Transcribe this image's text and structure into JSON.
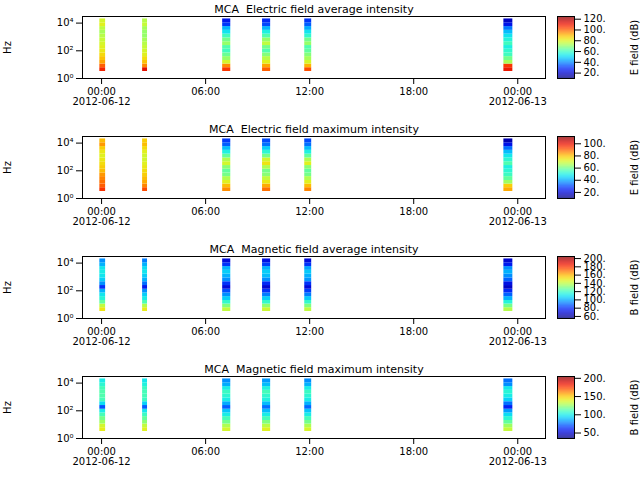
{
  "chart_data": [
    {
      "type": "heatmap",
      "title": "MCA  Electric field average intensity",
      "ylabel": "Hz",
      "log": "y",
      "xlim": [
        "2012-06-11 22:54",
        "2012-06-13 01:36"
      ],
      "xticks": [
        {
          "value": "2012-06-12 00:00",
          "label": "00:00\n2012-06-12"
        },
        {
          "value": "2012-06-12 06:00",
          "label": "06:00"
        },
        {
          "value": "2012-06-12 12:00",
          "label": "12:00"
        },
        {
          "value": "2012-06-12 18:00",
          "label": "18:00"
        },
        {
          "value": "2012-06-13 00:00",
          "label": "00:00\n2012-06-13"
        }
      ],
      "ylim": [
        1,
        30000
      ],
      "yticks": [
        {
          "value": 1,
          "label": "10⁰"
        },
        {
          "value": 100,
          "label": "10²"
        },
        {
          "value": 10000,
          "label": "10⁴"
        }
      ],
      "time_bins": [
        {
          "start": "2012-06-11 23:54",
          "end": "2012-06-12 00:14"
        },
        {
          "start": "2012-06-12 02:22",
          "end": "2012-06-12 02:39"
        },
        {
          "start": "2012-06-12 06:59",
          "end": "2012-06-12 07:27"
        },
        {
          "start": "2012-06-12 09:17",
          "end": "2012-06-12 09:45"
        },
        {
          "start": "2012-06-12 11:43",
          "end": "2012-06-12 12:07"
        },
        {
          "start": "2012-06-12 23:12",
          "end": "2012-06-12 23:43"
        }
      ],
      "frequency_bins": [
        3.2,
        6,
        11,
        20,
        38,
        70,
        130,
        240,
        450,
        850,
        1600,
        3000,
        5600,
        10500,
        20000
      ],
      "cells": [
        [
          108,
          100,
          92,
          88,
          85,
          82,
          80,
          78,
          76,
          74,
          72,
          75,
          80,
          78
        ],
        [
          112,
          95,
          88,
          84,
          80,
          78,
          76,
          74,
          72,
          70,
          70,
          72,
          76,
          74
        ],
        [
          105,
          95,
          78,
          70,
          65,
          60,
          62,
          70,
          66,
          60,
          52,
          45,
          30,
          25
        ],
        [
          100,
          92,
          80,
          74,
          68,
          62,
          66,
          75,
          70,
          62,
          55,
          45,
          32,
          28
        ],
        [
          102,
          90,
          78,
          72,
          68,
          64,
          62,
          70,
          66,
          58,
          52,
          44,
          35,
          30
        ],
        [
          110,
          105,
          72,
          66,
          60,
          58,
          55,
          60,
          56,
          52,
          46,
          38,
          24,
          18
        ]
      ],
      "colorbar": {
        "label": "E field (dB)",
        "range": [
          10,
          125
        ],
        "ticks": [
          {
            "value": 20,
            "label": "20."
          },
          {
            "value": 40,
            "label": "40."
          },
          {
            "value": 60,
            "label": "60."
          },
          {
            "value": 80,
            "label": "80."
          },
          {
            "value": 100,
            "label": "100."
          },
          {
            "value": 120,
            "label": "120."
          }
        ]
      }
    },
    {
      "type": "heatmap",
      "title": "MCA  Electric field maximum intensity",
      "ylabel": "Hz",
      "log": "y",
      "xlim": [
        "2012-06-11 22:54",
        "2012-06-13 01:36"
      ],
      "xticks": [
        {
          "value": "2012-06-12 00:00",
          "label": "00:00\n2012-06-12"
        },
        {
          "value": "2012-06-12 06:00",
          "label": "06:00"
        },
        {
          "value": "2012-06-12 12:00",
          "label": "12:00"
        },
        {
          "value": "2012-06-12 18:00",
          "label": "18:00"
        },
        {
          "value": "2012-06-13 00:00",
          "label": "00:00\n2012-06-13"
        }
      ],
      "ylim": [
        1,
        30000
      ],
      "yticks": [
        {
          "value": 1,
          "label": "10⁰"
        },
        {
          "value": 100,
          "label": "10²"
        },
        {
          "value": 10000,
          "label": "10⁴"
        }
      ],
      "time_bins": [
        {
          "start": "2012-06-11 23:54",
          "end": "2012-06-12 00:14"
        },
        {
          "start": "2012-06-12 02:22",
          "end": "2012-06-12 02:39"
        },
        {
          "start": "2012-06-12 06:59",
          "end": "2012-06-12 07:27"
        },
        {
          "start": "2012-06-12 09:17",
          "end": "2012-06-12 09:45"
        },
        {
          "start": "2012-06-12 11:43",
          "end": "2012-06-12 12:07"
        },
        {
          "start": "2012-06-12 23:12",
          "end": "2012-06-12 23:43"
        }
      ],
      "frequency_bins": [
        3.2,
        6,
        11,
        20,
        38,
        70,
        130,
        240,
        450,
        850,
        1600,
        3000,
        5600,
        10500,
        20000
      ],
      "cells": [
        [
          95,
          90,
          88,
          86,
          84,
          80,
          78,
          76,
          74,
          72,
          74,
          78,
          84,
          80
        ],
        [
          92,
          86,
          82,
          80,
          78,
          76,
          74,
          72,
          70,
          70,
          72,
          76,
          80,
          78
        ],
        [
          85,
          80,
          72,
          66,
          60,
          58,
          62,
          70,
          66,
          58,
          50,
          42,
          32,
          28
        ],
        [
          88,
          82,
          74,
          68,
          62,
          60,
          66,
          75,
          70,
          60,
          52,
          44,
          34,
          30
        ],
        [
          86,
          80,
          72,
          66,
          60,
          58,
          62,
          72,
          66,
          58,
          50,
          42,
          34,
          30
        ],
        [
          82,
          78,
          64,
          58,
          54,
          52,
          50,
          56,
          52,
          48,
          42,
          34,
          22,
          15
        ]
      ],
      "colorbar": {
        "label": "E field (dB)",
        "range": [
          10,
          112
        ],
        "ticks": [
          {
            "value": 20,
            "label": "20."
          },
          {
            "value": 40,
            "label": "40."
          },
          {
            "value": 60,
            "label": "60."
          },
          {
            "value": 80,
            "label": "80."
          },
          {
            "value": 100,
            "label": "100."
          }
        ]
      }
    },
    {
      "type": "heatmap",
      "title": "MCA  Magnetic field average intensity",
      "ylabel": "Hz",
      "log": "y",
      "xlim": [
        "2012-06-11 22:54",
        "2012-06-13 01:36"
      ],
      "xticks": [
        {
          "value": "2012-06-12 00:00",
          "label": "00:00\n2012-06-12"
        },
        {
          "value": "2012-06-12 06:00",
          "label": "06:00"
        },
        {
          "value": "2012-06-12 12:00",
          "label": "12:00"
        },
        {
          "value": "2012-06-12 18:00",
          "label": "18:00"
        },
        {
          "value": "2012-06-13 00:00",
          "label": "00:00\n2012-06-13"
        }
      ],
      "ylim": [
        1,
        30000
      ],
      "yticks": [
        {
          "value": 1,
          "label": "10⁰"
        },
        {
          "value": 100,
          "label": "10²"
        },
        {
          "value": 10000,
          "label": "10⁴"
        }
      ],
      "time_bins": [
        {
          "start": "2012-06-11 23:54",
          "end": "2012-06-12 00:14"
        },
        {
          "start": "2012-06-12 02:22",
          "end": "2012-06-12 02:39"
        },
        {
          "start": "2012-06-12 06:59",
          "end": "2012-06-12 07:27"
        },
        {
          "start": "2012-06-12 09:17",
          "end": "2012-06-12 09:45"
        },
        {
          "start": "2012-06-12 11:43",
          "end": "2012-06-12 12:07"
        },
        {
          "start": "2012-06-12 23:12",
          "end": "2012-06-12 23:43"
        }
      ],
      "frequency_bins": [
        3.2,
        6,
        11,
        20,
        38,
        70,
        130,
        240,
        450,
        850,
        1600,
        3000,
        5600,
        10500,
        20000
      ],
      "cells": [
        [
          150,
          140,
          125,
          115,
          110,
          100,
          80,
          95,
          105,
          110,
          112,
          110,
          100,
          95
        ],
        [
          148,
          138,
          122,
          112,
          105,
          95,
          75,
          90,
          100,
          105,
          110,
          108,
          100,
          92
        ],
        [
          140,
          130,
          118,
          105,
          95,
          85,
          70,
          80,
          95,
          100,
          105,
          100,
          80,
          70
        ],
        [
          142,
          132,
          118,
          105,
          92,
          80,
          68,
          78,
          95,
          102,
          105,
          100,
          82,
          72
        ],
        [
          140,
          130,
          118,
          104,
          92,
          82,
          70,
          80,
          96,
          100,
          104,
          98,
          80,
          70
        ],
        [
          138,
          128,
          115,
          100,
          88,
          78,
          66,
          72,
          88,
          95,
          100,
          95,
          75,
          68
        ]
      ],
      "colorbar": {
        "label": "B field (dB)",
        "range": [
          55,
          205
        ],
        "ticks": [
          {
            "value": 60,
            "label": "60."
          },
          {
            "value": 80,
            "label": "80."
          },
          {
            "value": 100,
            "label": "100."
          },
          {
            "value": 120,
            "label": "120."
          },
          {
            "value": 140,
            "label": "140."
          },
          {
            "value": 160,
            "label": "160."
          },
          {
            "value": 180,
            "label": "180."
          },
          {
            "value": 200,
            "label": "200."
          }
        ]
      }
    },
    {
      "type": "heatmap",
      "title": "MCA  Magnetic field maximum intensity",
      "ylabel": "Hz",
      "log": "y",
      "xlim": [
        "2012-06-11 22:54",
        "2012-06-13 01:36"
      ],
      "xticks": [
        {
          "value": "2012-06-12 00:00",
          "label": "00:00\n2012-06-12"
        },
        {
          "value": "2012-06-12 06:00",
          "label": "06:00"
        },
        {
          "value": "2012-06-12 12:00",
          "label": "12:00"
        },
        {
          "value": "2012-06-12 18:00",
          "label": "18:00"
        },
        {
          "value": "2012-06-13 00:00",
          "label": "00:00\n2012-06-13"
        }
      ],
      "ylim": [
        1,
        30000
      ],
      "yticks": [
        {
          "value": 1,
          "label": "10⁰"
        },
        {
          "value": 100,
          "label": "10²"
        },
        {
          "value": 10000,
          "label": "10⁴"
        }
      ],
      "time_bins": [
        {
          "start": "2012-06-11 23:54",
          "end": "2012-06-12 00:14"
        },
        {
          "start": "2012-06-12 02:22",
          "end": "2012-06-12 02:39"
        },
        {
          "start": "2012-06-12 06:59",
          "end": "2012-06-12 07:27"
        },
        {
          "start": "2012-06-12 09:17",
          "end": "2012-06-12 09:45"
        },
        {
          "start": "2012-06-12 11:43",
          "end": "2012-06-12 12:07"
        },
        {
          "start": "2012-06-12 23:12",
          "end": "2012-06-12 23:43"
        }
      ],
      "frequency_bins": [
        3.2,
        6,
        11,
        20,
        38,
        70,
        130,
        240,
        450,
        850,
        1600,
        3000,
        5600,
        10500,
        20000
      ],
      "cells": [
        [
          140,
          135,
          125,
          118,
          110,
          100,
          70,
          95,
          110,
          112,
          112,
          110,
          105,
          100
        ],
        [
          138,
          132,
          122,
          115,
          108,
          98,
          72,
          92,
          108,
          110,
          110,
          108,
          102,
          98
        ],
        [
          135,
          128,
          118,
          110,
          100,
          90,
          72,
          85,
          100,
          105,
          108,
          100,
          85,
          80
        ],
        [
          138,
          130,
          120,
          110,
          100,
          88,
          75,
          88,
          102,
          106,
          110,
          102,
          88,
          82
        ],
        [
          136,
          128,
          118,
          110,
          100,
          90,
          74,
          86,
          100,
          105,
          108,
          100,
          86,
          80
        ],
        [
          132,
          125,
          115,
          105,
          95,
          82,
          60,
          75,
          92,
          100,
          104,
          98,
          80,
          75
        ]
      ],
      "colorbar": {
        "label": "B field (dB)",
        "range": [
          35,
          205
        ],
        "ticks": [
          {
            "value": 50,
            "label": "50."
          },
          {
            "value": 100,
            "label": "100."
          },
          {
            "value": 150,
            "label": "150."
          },
          {
            "value": 200,
            "label": "200."
          }
        ]
      }
    }
  ]
}
